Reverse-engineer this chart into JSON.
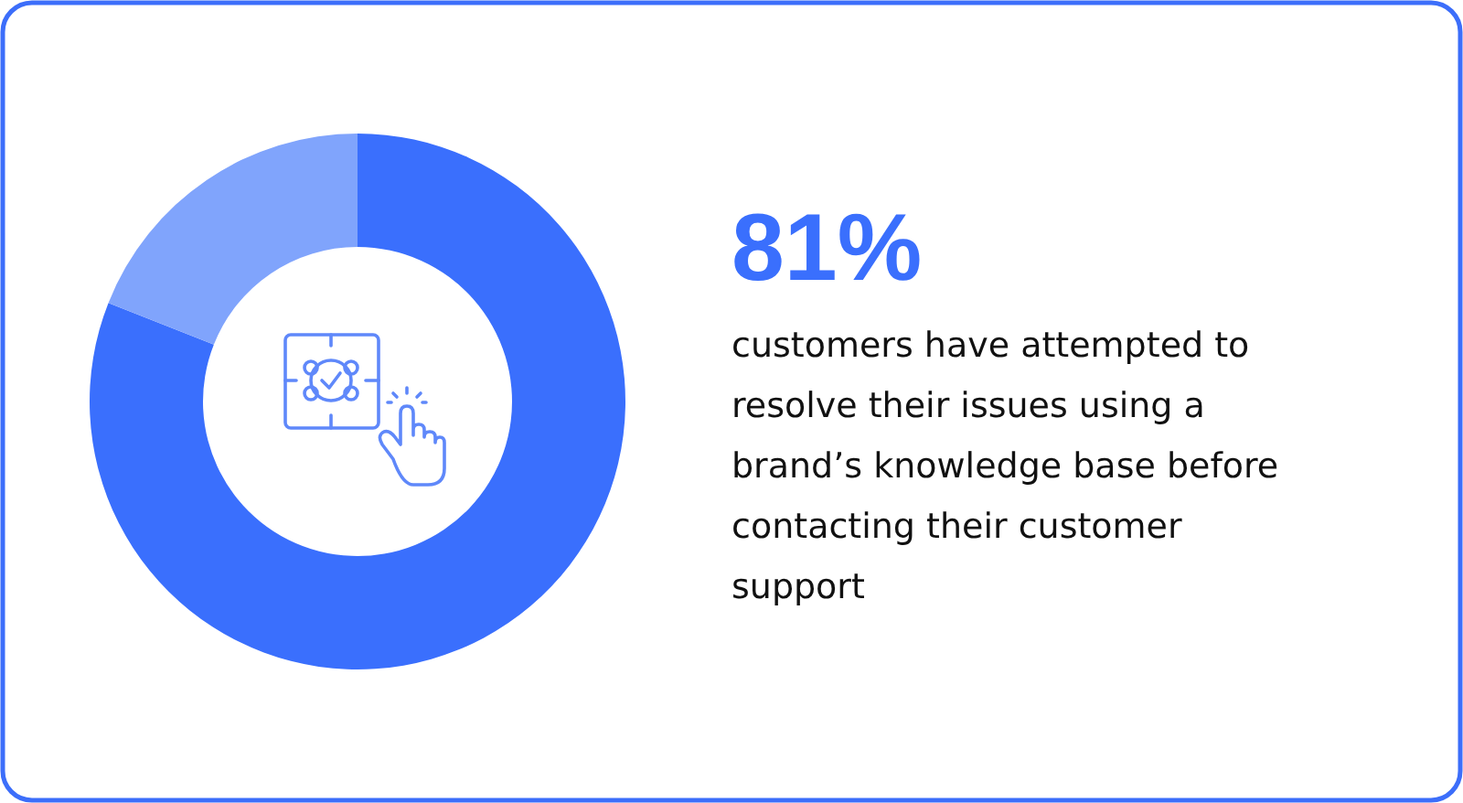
{
  "chart_data": {
    "type": "donut",
    "title": "81%",
    "subtitle": "customers have attempted to resolve their issues using a brand’s knowledge base before contacting their customer support",
    "categories": [
      null,
      null
    ],
    "values": [
      81,
      19
    ],
    "colors": [
      "#3a6ffd",
      "#80a4fc"
    ]
  }
}
